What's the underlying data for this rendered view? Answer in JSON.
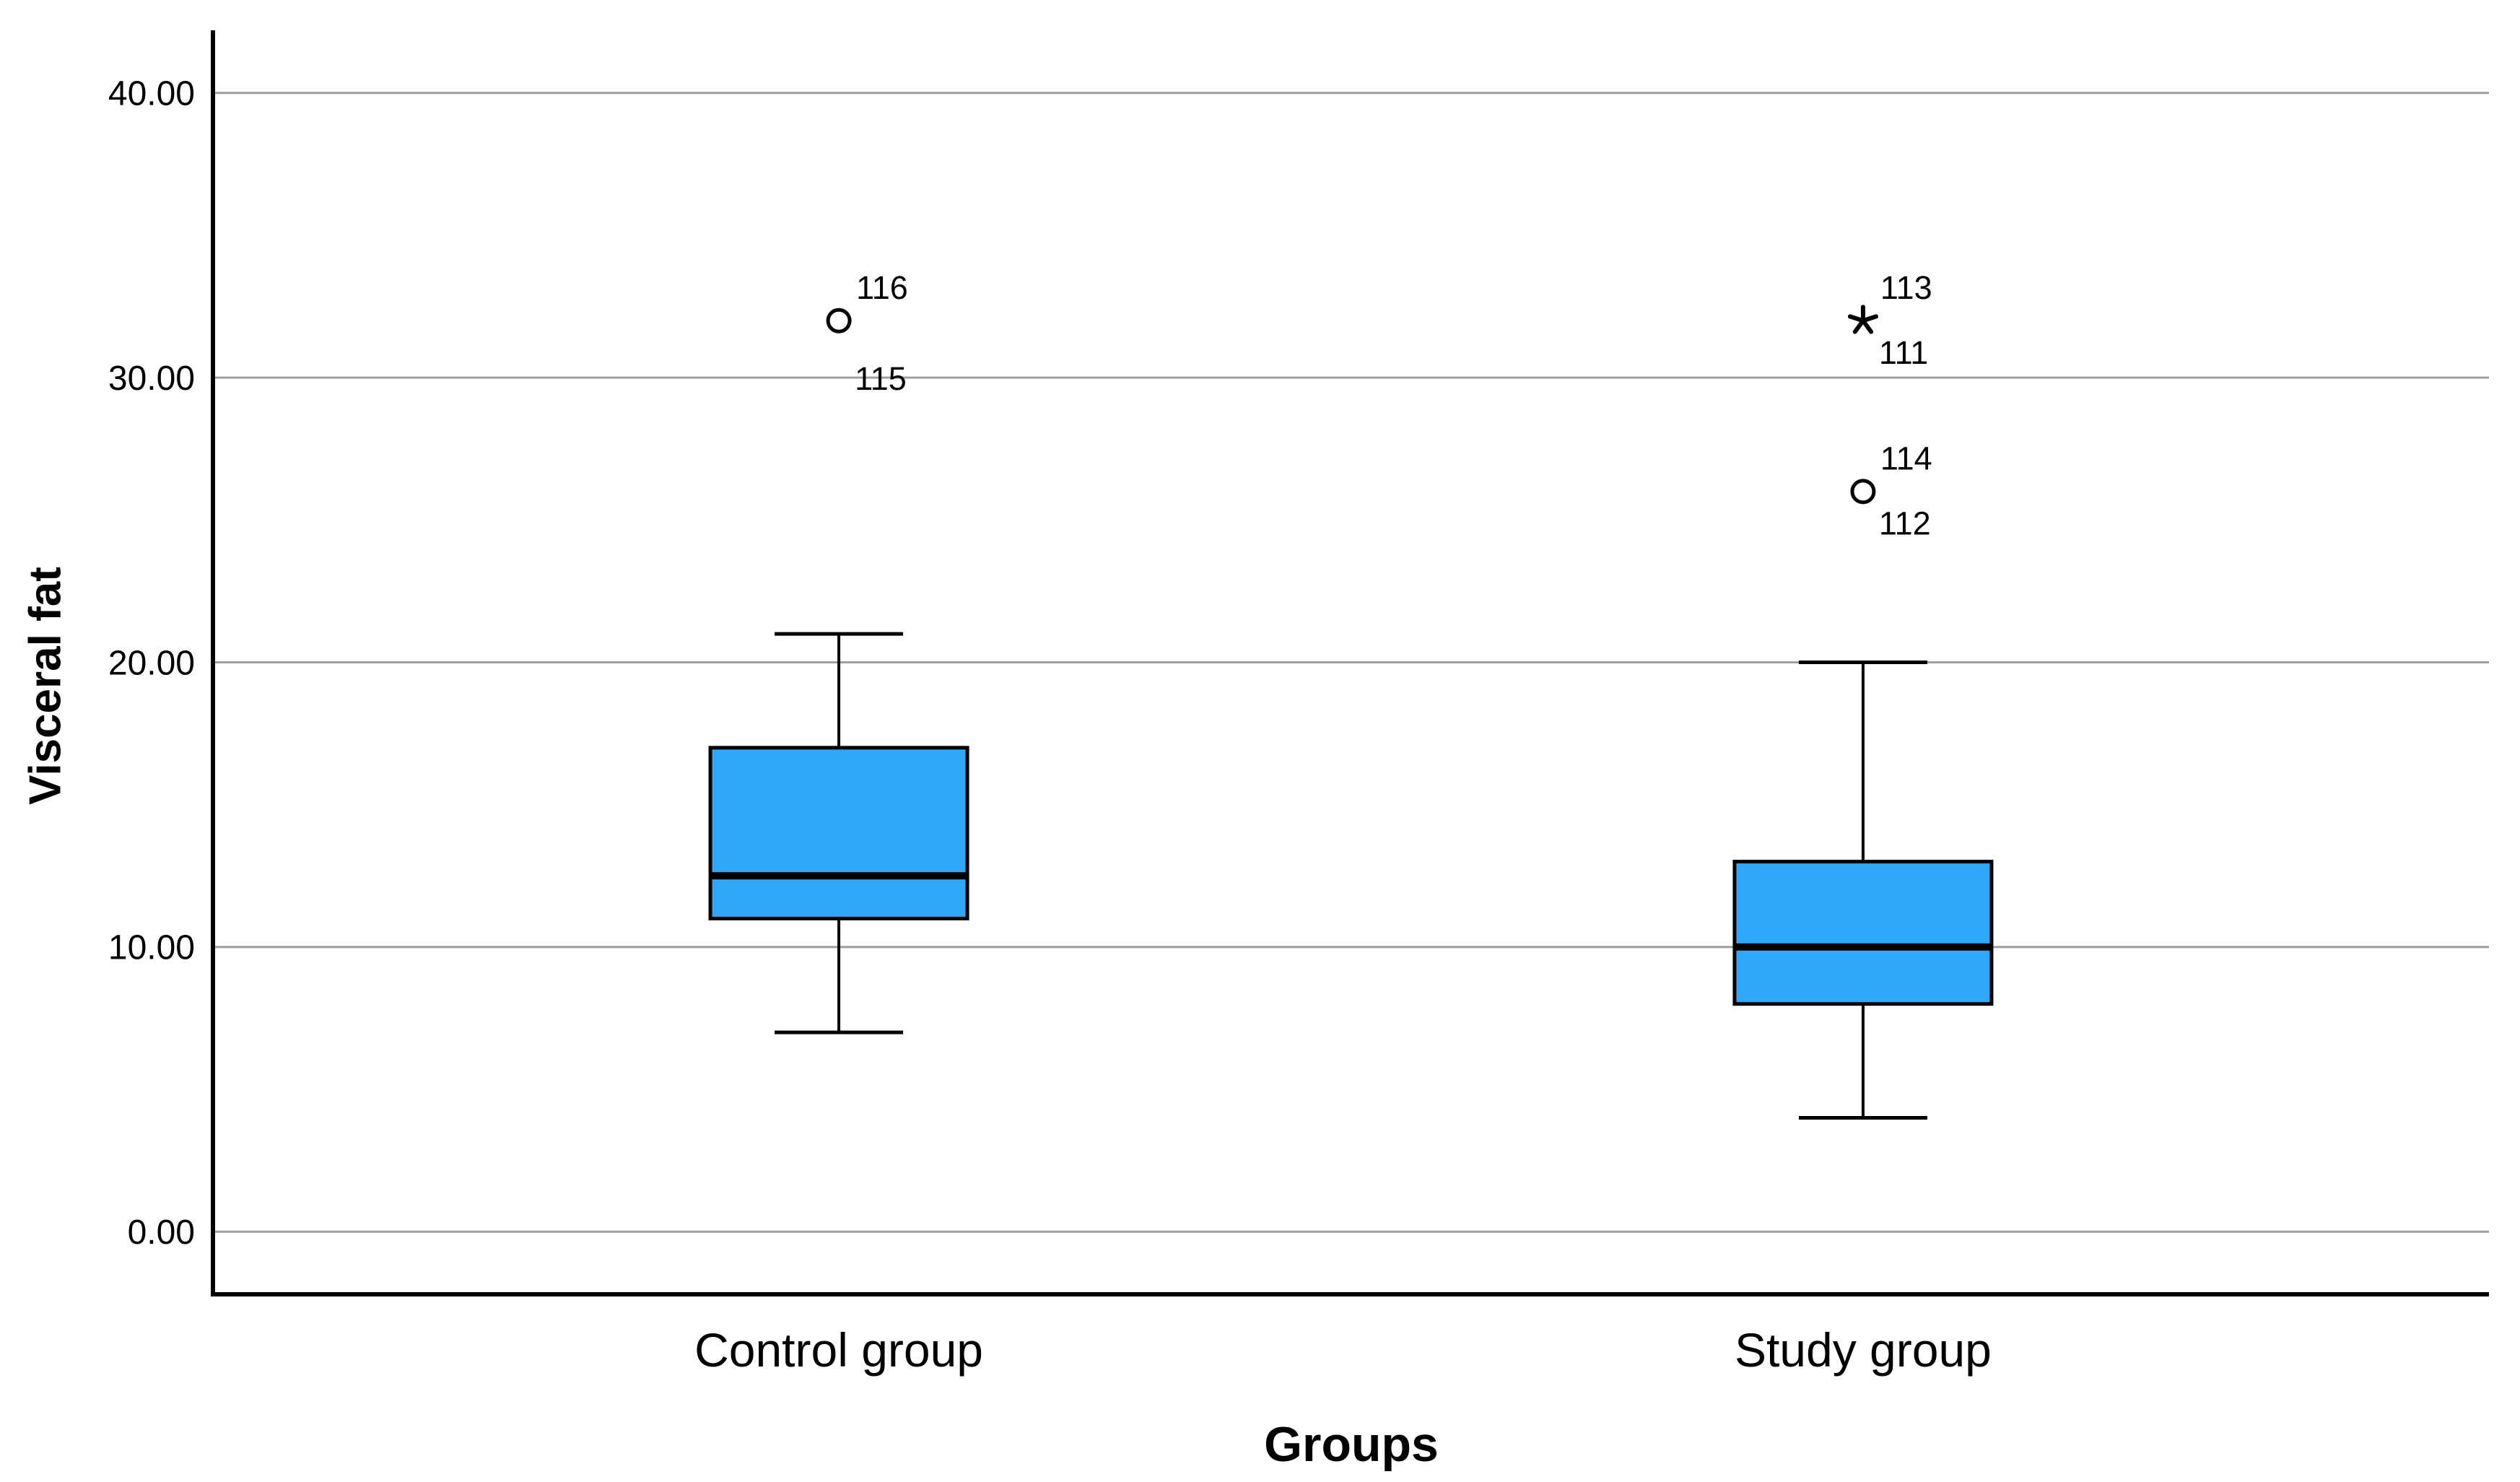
{
  "chart_data": {
    "type": "boxplot",
    "title": "",
    "xlabel": "Groups",
    "ylabel": "Visceral fat",
    "categories": [
      "Control group",
      "Study group"
    ],
    "y_ticks": [
      {
        "value": 0,
        "label": "0.00"
      },
      {
        "value": 10,
        "label": "10.00"
      },
      {
        "value": 20,
        "label": "20.00"
      },
      {
        "value": 30,
        "label": "30.00"
      },
      {
        "value": 40,
        "label": "40.00"
      }
    ],
    "ylim": [
      -2.2,
      42.2
    ],
    "grid": "horizontal",
    "legend": "none",
    "boxes": [
      {
        "category": "Control group",
        "whisker_low": 7,
        "q1": 11,
        "median": 12.5,
        "q3": 17,
        "whisker_high": 21,
        "outliers": [
          {
            "value": 32,
            "marker": "circle",
            "label_above": "116",
            "label_below": "115",
            "label_below_dy": 80
          }
        ]
      },
      {
        "category": "Study group",
        "whisker_low": 4,
        "q1": 8,
        "median": 10,
        "q3": 13,
        "whisker_high": 20,
        "outliers": [
          {
            "value": 32,
            "marker": "star",
            "label_above": "113",
            "label_below": "111",
            "label_below_dy": 44
          },
          {
            "value": 26,
            "marker": "circle",
            "label_above": "114",
            "label_below": "112",
            "label_below_dy": 44
          }
        ]
      }
    ],
    "colors": {
      "box_fill": "#2FA8F8",
      "box_stroke": "#000000",
      "median": "#000000",
      "whisker": "#000000",
      "grid": "#9E9E9E",
      "axis": "#000000",
      "text": "#000000",
      "outlier_fill": "#FFFFFF",
      "background": "#FFFFFF"
    }
  }
}
